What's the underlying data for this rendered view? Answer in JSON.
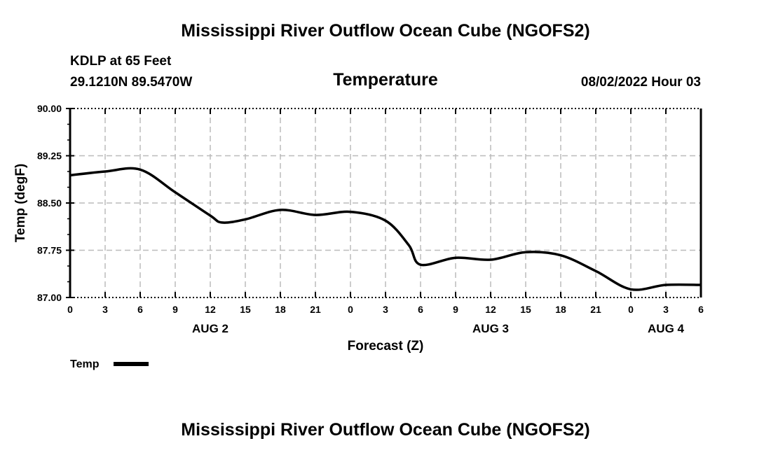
{
  "header": {
    "title": "Mississippi River Outflow Ocean Cube (NGOFS2)",
    "station": "KDLP at 65 Feet",
    "coords": "29.1210N  89.5470W",
    "variable": "Temperature",
    "datetime": "08/02/2022 Hour 03"
  },
  "footer": {
    "title": "Mississippi River Outflow Ocean Cube (NGOFS2)"
  },
  "chart_data": {
    "type": "line",
    "title": "Temperature",
    "xlabel": "Forecast (Z)",
    "ylabel": "Temp (degF)",
    "ylim": [
      87.0,
      90.0
    ],
    "xlim": [
      0,
      54
    ],
    "yticks": [
      "90.00",
      "89.25",
      "88.50",
      "87.75",
      "87.00"
    ],
    "ytick_values": [
      90.0,
      89.25,
      88.5,
      87.75,
      87.0
    ],
    "xtick_labels": [
      "0",
      "3",
      "6",
      "9",
      "12",
      "15",
      "18",
      "21",
      "0",
      "3",
      "6",
      "9",
      "12",
      "15",
      "18",
      "21",
      "0",
      "3",
      "6"
    ],
    "day_labels": [
      {
        "hour": 12,
        "label": "AUG 2"
      },
      {
        "hour": 36,
        "label": "AUG 3"
      },
      {
        "hour": 51,
        "label": "AUG 4"
      }
    ],
    "grid": true,
    "legend": {
      "label": "Temp",
      "placement": "bottom-left"
    },
    "series": [
      {
        "name": "Temp",
        "color": "#000000",
        "x": [
          0,
          3,
          6,
          9,
          12,
          13,
          15,
          18,
          21,
          24,
          27,
          29,
          30,
          33,
          36,
          39,
          42,
          45,
          48,
          51,
          54
        ],
        "y": [
          88.94,
          89.0,
          89.03,
          88.67,
          88.3,
          88.19,
          88.24,
          88.39,
          88.31,
          88.36,
          88.22,
          87.83,
          87.52,
          87.63,
          87.6,
          87.72,
          87.67,
          87.42,
          87.13,
          87.2,
          87.2
        ]
      }
    ]
  }
}
